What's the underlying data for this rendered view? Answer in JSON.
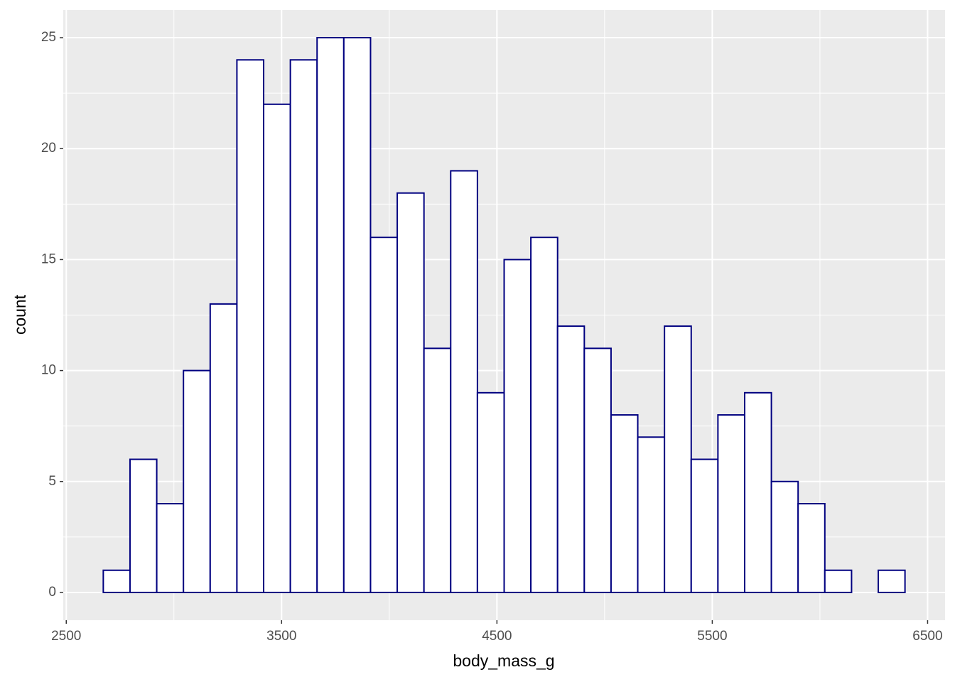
{
  "chart_data": {
    "type": "histogram",
    "x_label": "body_mass_g",
    "y_label": "count",
    "bins": [
      2672.0,
      2796.1,
      2920.2,
      3044.3,
      3168.4,
      3292.5,
      3416.6,
      3540.7,
      3664.8,
      3788.9,
      3913.0,
      4037.1,
      4161.2,
      4285.3,
      4409.4,
      4533.5,
      4657.6,
      4781.7,
      4905.8,
      5029.9,
      5154.0,
      5278.1,
      5402.2,
      5526.3,
      5650.4,
      5774.5,
      5898.6,
      6022.7,
      6146.8,
      6270.9,
      6395.0
    ],
    "values": [
      1,
      6,
      4,
      10,
      13,
      24,
      22,
      24,
      25,
      25,
      16,
      18,
      11,
      19,
      9,
      15,
      16,
      12,
      11,
      8,
      7,
      12,
      6,
      8,
      9,
      5,
      4,
      1,
      0,
      1
    ],
    "color": "#ffffff",
    "edgecolor": "#000080",
    "xlim": [
      2486,
      6581
    ],
    "ylim": [
      -1.25,
      26.25
    ],
    "xticks": [
      2500,
      3500,
      4500,
      5500,
      6500
    ],
    "yticks": [
      0,
      5,
      10,
      15,
      20,
      25
    ],
    "xminor": [
      3000,
      4000,
      5000,
      6000
    ],
    "yminor": [
      2.5,
      7.5,
      12.5,
      17.5,
      22.5
    ],
    "grid": true
  }
}
